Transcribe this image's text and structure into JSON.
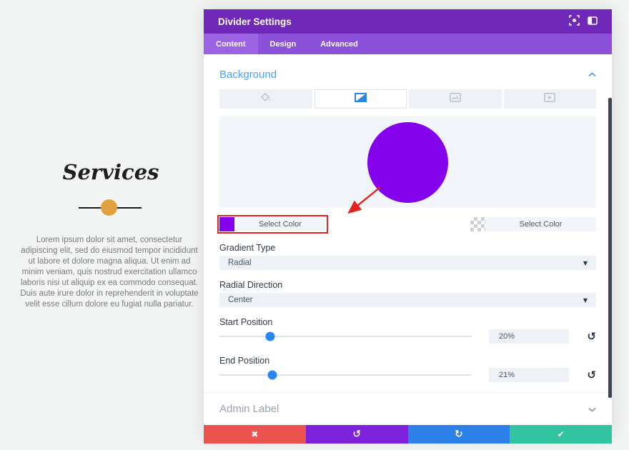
{
  "article": {
    "title": "Services",
    "body": "Lorem ipsum dolor sit amet, consectetur adipiscing elit, sed do eiusmod tempor incididunt ut labore et dolore magna aliqua. Ut enim ad minim veniam, quis nostrud exercitation ullamco laboris nisi ut aliquip ex ea commodo consequat. Duis aute irure dolor in reprehenderit in voluptate velit esse cillum dolore eu fugiat nulla pariatur.",
    "divider_dot_color": "#e2a13c"
  },
  "modal": {
    "title": "Divider Settings",
    "tabs": [
      {
        "label": "Content"
      },
      {
        "label": "Design"
      },
      {
        "label": "Advanced"
      }
    ],
    "background": {
      "heading": "Background",
      "gradient": {
        "start_color": "#8502ec",
        "start_button": "Select Color",
        "end_button": "Select Color",
        "type_label": "Gradient Type",
        "type_value": "Radial",
        "direction_label": "Radial Direction",
        "direction_value": "Center",
        "start_position_label": "Start Position",
        "start_position_value": "20%",
        "start_position_percent": 20,
        "end_position_label": "End Position",
        "end_position_value": "21%",
        "end_position_percent": 21
      },
      "admin_label": "Admin Label"
    },
    "footer": {
      "close_icon": "✖",
      "undo_icon": "↺",
      "redo_icon": "↻",
      "save_icon": "✔"
    },
    "reset_icon": "↺",
    "dropdown_caret": "▼",
    "colors": {
      "header_purple": "#7028b8",
      "accent_blue": "#2d87e0",
      "annotation_red": "#e42320"
    }
  }
}
